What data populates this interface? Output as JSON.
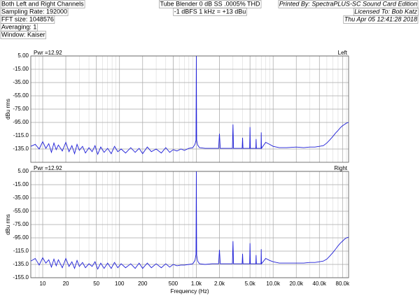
{
  "header": {
    "left": [
      "Both Left and Right Channels",
      "Sampling Rate: 192000",
      "FFT size: 1048576",
      "Averaging: 1",
      "Window: Kaiser"
    ],
    "center": [
      "Tube Blender 0 dB SS .0005% THD",
      "-1 dBFS 1 kHz = +13 dBu"
    ],
    "right": [
      "Printed By: SpectraPLUS-SC Sound Card Edition",
      "Licensed To: Bob Katz",
      "Thu Apr 05 12:41:28 2018"
    ]
  },
  "chart_data": [
    {
      "type": "line",
      "channel": "Left",
      "power_label": "Pwr =12.92",
      "y_label": "dBu rms",
      "xscale": "log",
      "grid": true,
      "minor_grid": true,
      "xlim": [
        7,
        96000
      ],
      "ylim": [
        -155,
        5
      ],
      "xticks": [
        10,
        20,
        50,
        100,
        200,
        500,
        1000,
        2000,
        5000,
        10000,
        20000,
        40000,
        80000
      ],
      "yticks": [
        {
          "value": 5,
          "label": "5.00"
        },
        {
          "value": -15,
          "label": "-15.00"
        },
        {
          "value": -35,
          "label": "-35.00"
        },
        {
          "value": -55,
          "label": "-55.00"
        },
        {
          "value": -75,
          "label": "-75.00"
        },
        {
          "value": -95,
          "label": "-95.00"
        },
        {
          "value": -115,
          "label": "-115.0"
        },
        {
          "value": -135,
          "label": "-135.0"
        }
      ],
      "x": [
        7,
        8,
        9,
        10,
        11,
        12,
        13,
        14,
        15,
        16,
        18,
        20,
        22,
        24,
        26,
        28,
        30,
        33,
        36,
        40,
        44,
        48,
        52,
        57,
        63,
        70,
        78,
        86,
        95,
        105,
        120,
        140,
        160,
        180,
        200,
        230,
        260,
        300,
        350,
        400,
        450,
        500,
        560,
        630,
        700,
        800,
        900,
        960,
        990,
        1000,
        1010,
        1040,
        1100,
        1300,
        1600,
        1950,
        2000,
        2050,
        2500,
        2950,
        3000,
        3050,
        3500,
        3950,
        4000,
        4050,
        4500,
        4950,
        5000,
        5050,
        5500,
        5950,
        6000,
        6050,
        6950,
        7000,
        7050,
        8000,
        9000,
        10000,
        12000,
        15000,
        20000,
        25000,
        30000,
        35000,
        40000,
        45000,
        50000,
        55000,
        60000,
        65000,
        70000,
        75000,
        80000,
        85000,
        90000,
        96000
      ],
      "series": [
        {
          "name": "Left",
          "color": "#1f1fd8",
          "values": [
            -131,
            -128,
            -135,
            -124,
            -134,
            -127,
            -140,
            -126,
            -136,
            -129,
            -138,
            -125,
            -139,
            -130,
            -142,
            -128,
            -137,
            -131,
            -141,
            -133,
            -139,
            -130,
            -143,
            -132,
            -140,
            -134,
            -142,
            -131,
            -139,
            -135,
            -141,
            -133,
            -140,
            -134,
            -142,
            -132,
            -139,
            -135,
            -141,
            -133,
            -140,
            -136,
            -138,
            -135,
            -137,
            -134,
            -133,
            -128,
            -122,
            5,
            -122,
            -129,
            -133,
            -134,
            -134,
            -134,
            -112,
            -134,
            -134,
            -134,
            -98,
            -134,
            -134,
            -134,
            -118,
            -134,
            -134,
            -134,
            -102,
            -134,
            -134,
            -134,
            -120,
            -134,
            -134,
            -110,
            -134,
            -125,
            -128,
            -131,
            -133,
            -133,
            -132,
            -133,
            -132,
            -132,
            -131,
            -130,
            -126,
            -121,
            -116,
            -111,
            -107,
            -103,
            -100,
            -98,
            -96,
            -95
          ]
        }
      ]
    },
    {
      "type": "line",
      "channel": "Right",
      "power_label": "Pwr =12.92",
      "y_label": "dBu rms",
      "x_label": "Frequency (Hz)",
      "xscale": "log",
      "grid": true,
      "minor_grid": true,
      "xlim": [
        7,
        96000
      ],
      "ylim": [
        -155,
        5
      ],
      "xticks": [
        10,
        20,
        50,
        100,
        200,
        500,
        {
          "value": 1000,
          "label": "1.0k"
        },
        {
          "value": 2000,
          "label": "2.0k"
        },
        {
          "value": 5000,
          "label": "5.0k"
        },
        {
          "value": 10000,
          "label": "10.0k"
        },
        {
          "value": 20000,
          "label": "20.0k"
        },
        {
          "value": 40000,
          "label": "40.0k"
        },
        {
          "value": 80000,
          "label": "80.0k"
        }
      ],
      "yticks": [
        {
          "value": 5,
          "label": "5.00"
        },
        {
          "value": -15,
          "label": "-15.00"
        },
        {
          "value": -35,
          "label": "-35.00"
        },
        {
          "value": -55,
          "label": "-55.00"
        },
        {
          "value": -75,
          "label": "-75.00"
        },
        {
          "value": -95,
          "label": "-95.00"
        },
        {
          "value": -115,
          "label": "-115.0"
        },
        {
          "value": -135,
          "label": "-135.0"
        },
        {
          "value": -155,
          "label": "-155.0"
        }
      ],
      "x": [
        7,
        8,
        9,
        10,
        11,
        12,
        13,
        14,
        15,
        16,
        18,
        20,
        22,
        24,
        26,
        28,
        30,
        33,
        36,
        40,
        44,
        48,
        52,
        57,
        63,
        70,
        78,
        86,
        95,
        105,
        120,
        140,
        160,
        180,
        200,
        230,
        260,
        300,
        350,
        400,
        450,
        500,
        560,
        630,
        700,
        800,
        900,
        960,
        990,
        1000,
        1010,
        1040,
        1100,
        1300,
        1600,
        1950,
        2000,
        2050,
        2500,
        2950,
        3000,
        3050,
        3500,
        3950,
        4000,
        4050,
        4500,
        4950,
        5000,
        5050,
        5500,
        5950,
        6000,
        6050,
        6950,
        7000,
        7050,
        8000,
        9000,
        10000,
        12000,
        15000,
        20000,
        25000,
        30000,
        35000,
        40000,
        45000,
        50000,
        55000,
        60000,
        65000,
        70000,
        75000,
        80000,
        85000,
        90000,
        96000
      ],
      "series": [
        {
          "name": "Right",
          "color": "#1f1fd8",
          "values": [
            -130,
            -126,
            -136,
            -125,
            -133,
            -128,
            -139,
            -127,
            -137,
            -128,
            -140,
            -126,
            -138,
            -131,
            -141,
            -129,
            -138,
            -132,
            -140,
            -134,
            -138,
            -131,
            -142,
            -133,
            -141,
            -133,
            -141,
            -132,
            -140,
            -134,
            -140,
            -134,
            -141,
            -133,
            -141,
            -133,
            -140,
            -134,
            -140,
            -134,
            -139,
            -135,
            -137,
            -136,
            -136,
            -135,
            -134,
            -129,
            -120,
            5,
            -121,
            -130,
            -134,
            -135,
            -134,
            -134,
            -113,
            -134,
            -134,
            -134,
            -100,
            -134,
            -134,
            -134,
            -119,
            -134,
            -134,
            -134,
            -103,
            -134,
            -134,
            -134,
            -121,
            -134,
            -134,
            -112,
            -134,
            -126,
            -129,
            -131,
            -133,
            -133,
            -133,
            -133,
            -132,
            -132,
            -131,
            -130,
            -127,
            -122,
            -117,
            -112,
            -107,
            -103,
            -100,
            -97,
            -95,
            -94
          ]
        }
      ]
    }
  ]
}
